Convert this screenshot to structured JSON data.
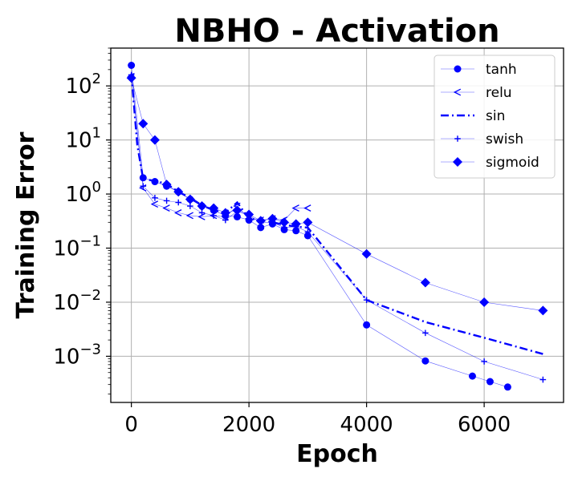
{
  "chart_data": {
    "type": "line",
    "title": "NBHO - Activation",
    "xlabel": "Epoch",
    "ylabel": "Training Error",
    "xlim": [
      -350,
      7350
    ],
    "ylim": [
      0.00014,
      500
    ],
    "yscale": "log",
    "grid": true,
    "legend_position": "top-right",
    "x_ticks": [
      0,
      2000,
      4000,
      6000
    ],
    "x_tick_labels": [
      "0",
      "2000",
      "4000",
      "6000"
    ],
    "y_ticks": [
      {
        "value": 0.001,
        "base": "10",
        "exp": "−3"
      },
      {
        "value": 0.01,
        "base": "10",
        "exp": "−2"
      },
      {
        "value": 0.1,
        "base": "10",
        "exp": "−1"
      },
      {
        "value": 1,
        "base": "10",
        "exp": "0"
      },
      {
        "value": 10,
        "base": "10",
        "exp": "1"
      },
      {
        "value": 100,
        "base": "10",
        "exp": "2"
      }
    ],
    "color": "#0000ff",
    "series": [
      {
        "name": "tanh",
        "marker": "circle",
        "line": "thin",
        "x": [
          0,
          200,
          400,
          600,
          800,
          1000,
          1200,
          1400,
          1600,
          1800,
          2000,
          2200,
          2400,
          2600,
          2800,
          3000,
          4000,
          5000,
          5800,
          6100,
          6400
        ],
        "y": [
          240,
          2.0,
          1.7,
          1.4,
          1.1,
          0.8,
          0.6,
          0.5,
          0.4,
          0.38,
          0.33,
          0.24,
          0.28,
          0.22,
          0.21,
          0.17,
          0.0038,
          0.00082,
          0.00043,
          0.00034,
          0.00027
        ]
      },
      {
        "name": "relu",
        "marker": "triangle-left",
        "line": "thin",
        "x": [
          0,
          200,
          400,
          600,
          800,
          1000,
          1200,
          1400,
          1600,
          1800,
          2000,
          2200,
          2400,
          2600,
          2800,
          3000
        ],
        "y": [
          150,
          1.3,
          0.65,
          0.55,
          0.45,
          0.4,
          0.38,
          0.4,
          0.38,
          0.6,
          0.35,
          0.33,
          0.35,
          0.33,
          0.55,
          0.55
        ]
      },
      {
        "name": "sin",
        "marker": "none",
        "line": "dashdot",
        "x": [
          0,
          100,
          200,
          400,
          600,
          800,
          1000,
          1200,
          1400,
          1600,
          1800,
          2000,
          2200,
          2400,
          2600,
          2800,
          3000,
          4000,
          5000,
          6000,
          7000
        ],
        "y": [
          170,
          8.0,
          1.9,
          1.75,
          1.55,
          1.1,
          0.85,
          0.62,
          0.5,
          0.45,
          0.7,
          0.35,
          0.33,
          0.3,
          0.27,
          0.25,
          0.24,
          0.011,
          0.0043,
          0.0022,
          0.0011
        ]
      },
      {
        "name": "swish",
        "marker": "plus",
        "line": "thin",
        "x": [
          0,
          200,
          400,
          600,
          800,
          1000,
          1200,
          1400,
          1600,
          1800,
          2000,
          2200,
          2400,
          2600,
          2800,
          3000,
          4000,
          5000,
          6000,
          7000
        ],
        "y": [
          160,
          1.4,
          0.85,
          0.75,
          0.7,
          0.6,
          0.45,
          0.4,
          0.33,
          0.48,
          0.4,
          0.3,
          0.3,
          0.24,
          0.25,
          0.2,
          0.011,
          0.0027,
          0.0008,
          0.00037
        ]
      },
      {
        "name": "sigmoid",
        "marker": "diamond",
        "line": "thin",
        "x": [
          0,
          200,
          400,
          600,
          800,
          1000,
          1200,
          1400,
          1600,
          1800,
          2000,
          2200,
          2400,
          2600,
          2800,
          3000,
          4000,
          5000,
          6000,
          7000
        ],
        "y": [
          140,
          20,
          10,
          1.5,
          1.1,
          0.8,
          0.6,
          0.55,
          0.45,
          0.5,
          0.42,
          0.32,
          0.35,
          0.3,
          0.28,
          0.3,
          0.078,
          0.023,
          0.01,
          0.007
        ]
      }
    ]
  }
}
